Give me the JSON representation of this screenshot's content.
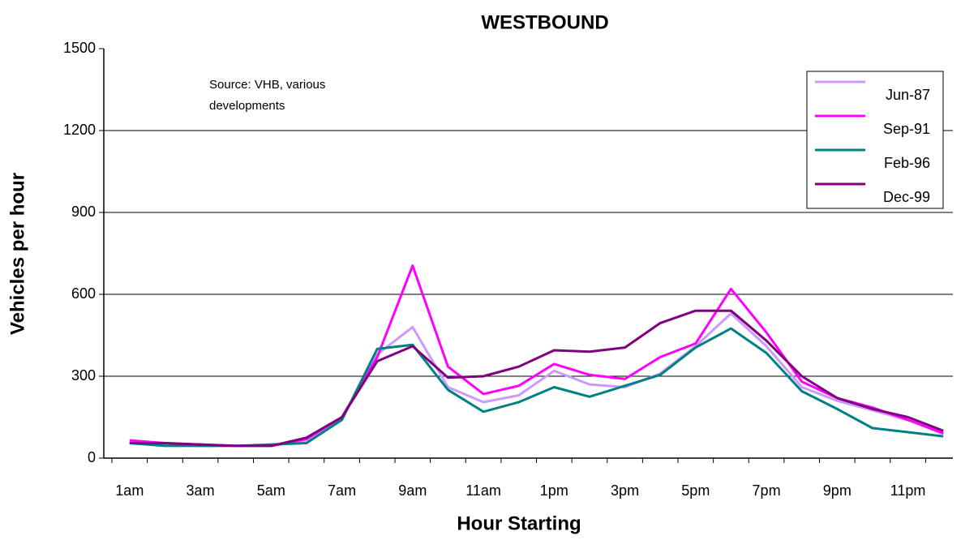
{
  "chart_data": {
    "type": "line",
    "title": "WESTBOUND",
    "x_label": "Hour Starting",
    "y_label": "Vehicles per hour",
    "annotation": [
      "Source:  VHB, various",
      "developments"
    ],
    "categories": [
      "1am",
      null,
      "3am",
      null,
      "5am",
      null,
      "7am",
      null,
      "9am",
      null,
      "11am",
      null,
      "1pm",
      null,
      "3pm",
      null,
      "5pm",
      null,
      "7pm",
      null,
      "9pm",
      null,
      "11pm",
      null
    ],
    "series": [
      {
        "name": "Jun-87",
        "color": "#cc99ff",
        "values": [
          60,
          50,
          45,
          45,
          45,
          65,
          145,
          380,
          480,
          260,
          205,
          230,
          320,
          270,
          260,
          310,
          410,
          530,
          410,
          260,
          210,
          175,
          140,
          95
        ]
      },
      {
        "name": "Sep-91",
        "color": "#ff00ff",
        "values": [
          65,
          55,
          50,
          45,
          45,
          70,
          150,
          370,
          705,
          335,
          235,
          265,
          345,
          305,
          290,
          370,
          420,
          620,
          460,
          280,
          220,
          185,
          140,
          90
        ]
      },
      {
        "name": "Feb-96",
        "color": "#008080",
        "values": [
          55,
          45,
          45,
          45,
          50,
          55,
          140,
          400,
          415,
          250,
          170,
          205,
          260,
          225,
          265,
          305,
          405,
          475,
          385,
          245,
          180,
          110,
          95,
          80
        ]
      },
      {
        "name": "Dec-99",
        "color": "#800080",
        "values": [
          55,
          55,
          50,
          45,
          45,
          75,
          150,
          355,
          410,
          295,
          300,
          335,
          395,
          390,
          405,
          495,
          540,
          540,
          430,
          300,
          220,
          180,
          150,
          100
        ]
      }
    ],
    "ylim": [
      0,
      1500
    ],
    "yticks": [
      0,
      300,
      600,
      900,
      1200,
      1500
    ],
    "grid": true,
    "legend": "upper right"
  }
}
